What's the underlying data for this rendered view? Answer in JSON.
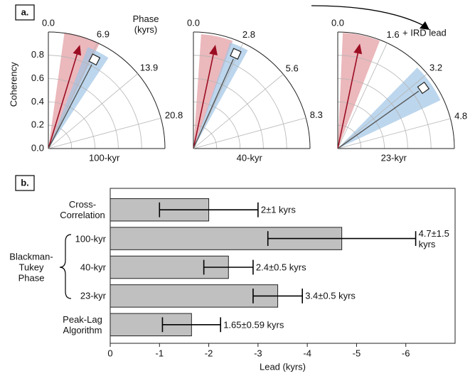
{
  "panel_labels": [
    "a.",
    "b."
  ],
  "annotation": "+ IRD lead",
  "chart_data": [
    {
      "type": "polar",
      "title": "100-kyr",
      "theta_label": "Phase (kyrs)",
      "r_label": "Coherency",
      "rtick_labels": true,
      "thetalim": [
        0,
        25
      ],
      "thetaticks": [
        {
          "value": 0,
          "label": "0.0"
        },
        6.9,
        13.9,
        20.8
      ],
      "rlim": [
        0,
        1
      ],
      "rticks": [
        {
          "value": 0,
          "label": "0.0"
        },
        {
          "value": 0.2,
          "label": "0.2"
        },
        {
          "value": 0.4,
          "label": "0.4"
        },
        {
          "value": 0.6,
          "label": "0.6"
        },
        {
          "value": 0.8,
          "label": "0.8"
        }
      ],
      "series": [
        {
          "marker": "arrow",
          "color": "#9b0d22",
          "band_color": "#e39aa0",
          "phase": 4.7,
          "phase_error": 2.5,
          "coherency": 0.93
        },
        {
          "marker": "diamond",
          "color": "#555555",
          "band_color": "#9fc5e6",
          "phase": 7.6,
          "phase_error": 1.7,
          "coherency": 0.86
        }
      ]
    },
    {
      "type": "polar",
      "title": "40-kyr",
      "thetalim": [
        0,
        10
      ],
      "thetaticks": [
        {
          "value": 0,
          "label": "0.0"
        },
        2.8,
        5.6,
        8.3
      ],
      "rlim": [
        0,
        1
      ],
      "rticks": [
        0.2,
        0.4,
        0.6,
        0.8
      ],
      "series": [
        {
          "marker": "arrow",
          "color": "#9b0d22",
          "band_color": "#e39aa0",
          "phase": 1.33,
          "phase_error": 0.9,
          "coherency": 0.91
        },
        {
          "marker": "diamond",
          "color": "#555555",
          "band_color": "#9fc5e6",
          "phase": 2.67,
          "phase_error": 0.55,
          "coherency": 0.89
        }
      ]
    },
    {
      "type": "polar",
      "title": "23-kyr",
      "thetalim": [
        0,
        5.75
      ],
      "thetaticks": [
        {
          "value": 0,
          "label": "0.0"
        },
        1.6,
        3.2,
        4.8
      ],
      "rlim": [
        0,
        1
      ],
      "rticks": [
        0.2,
        0.4,
        0.6,
        0.8
      ],
      "series": [
        {
          "marker": "arrow",
          "color": "#9b0d22",
          "band_color": "#e39aa0",
          "phase": 0.76,
          "phase_error": 0.6,
          "coherency": 0.92
        },
        {
          "marker": "diamond",
          "color": "#555555",
          "band_color": "#9fc5e6",
          "phase": 3.49,
          "phase_error": 0.65,
          "coherency": 0.9
        }
      ]
    },
    {
      "type": "hbar",
      "xlabel": "Lead (kyrs)",
      "categories": [
        "Cross-Correlation",
        "100-kyr",
        "40-kyr",
        "23-kyr",
        "Peak-Lag Algorithm"
      ],
      "category_group": {
        "label": "Blackman-Tukey Phase",
        "first": 1,
        "last": 3
      },
      "values": [
        -2,
        -4.7,
        -2.4,
        -3.4,
        -1.65
      ],
      "errors": [
        1,
        1.5,
        0.5,
        0.5,
        0.59
      ],
      "value_labels": [
        "2±1 kyrs",
        "4.7±1.5 kyrs",
        "2.4±0.5 kyrs",
        "3.4±0.5 kyrs",
        "1.65±0.59 kyrs"
      ],
      "color": "#c0c0c0",
      "xlim": [
        0,
        -7
      ],
      "xticks": [
        0,
        -1,
        -2,
        -3,
        -4,
        -5,
        -6
      ]
    }
  ]
}
